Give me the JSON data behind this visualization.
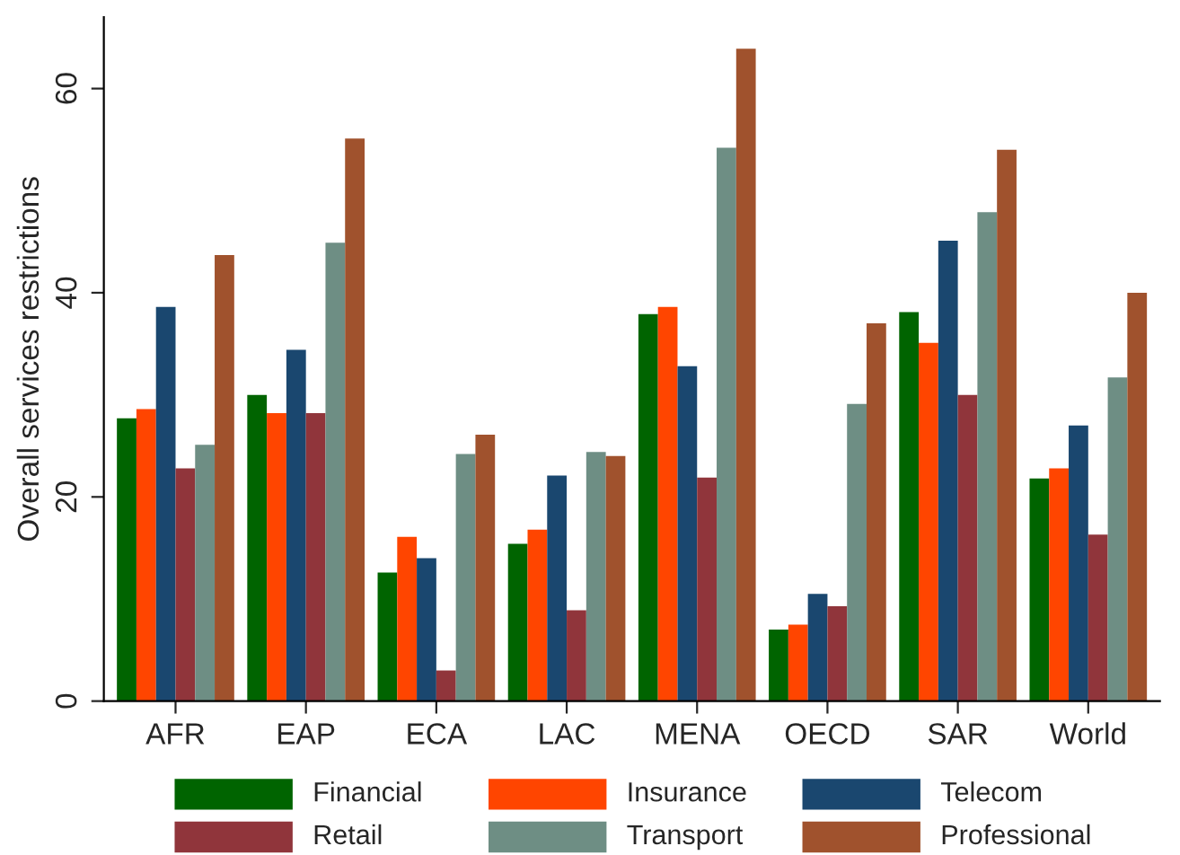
{
  "chart_data": {
    "type": "bar",
    "ylabel": "Overall services restrictions",
    "categories": [
      "AFR",
      "EAP",
      "ECA",
      "LAC",
      "MENA",
      "OECD",
      "SAR",
      "World"
    ],
    "series": [
      {
        "name": "Financial",
        "color": "#006400",
        "values": [
          27.7,
          30,
          12.6,
          15.4,
          37.9,
          7,
          38.1,
          21.8
        ]
      },
      {
        "name": "Insurance",
        "color": "#ff4500",
        "values": [
          28.6,
          28.2,
          16.1,
          16.8,
          38.6,
          7.5,
          35.1,
          22.8
        ]
      },
      {
        "name": "Telecom",
        "color": "#1a476f",
        "values": [
          38.6,
          34.4,
          14,
          22.1,
          32.8,
          10.5,
          45.1,
          27
        ]
      },
      {
        "name": "Retail",
        "color": "#90353b",
        "values": [
          22.8,
          28.2,
          3,
          8.9,
          21.9,
          9.3,
          30,
          16.3
        ]
      },
      {
        "name": "Transport",
        "color": "#6e8e84",
        "values": [
          25.1,
          44.9,
          24.2,
          24.4,
          54.2,
          29.1,
          47.9,
          31.7
        ]
      },
      {
        "name": "Professional",
        "color": "#a0522d",
        "values": [
          43.7,
          55.1,
          26.1,
          24,
          63.9,
          37,
          54,
          40
        ]
      }
    ],
    "ylim": [
      0,
      67
    ],
    "yticks": [
      0,
      20,
      40,
      60
    ],
    "grid": false,
    "legend": "bottom"
  }
}
